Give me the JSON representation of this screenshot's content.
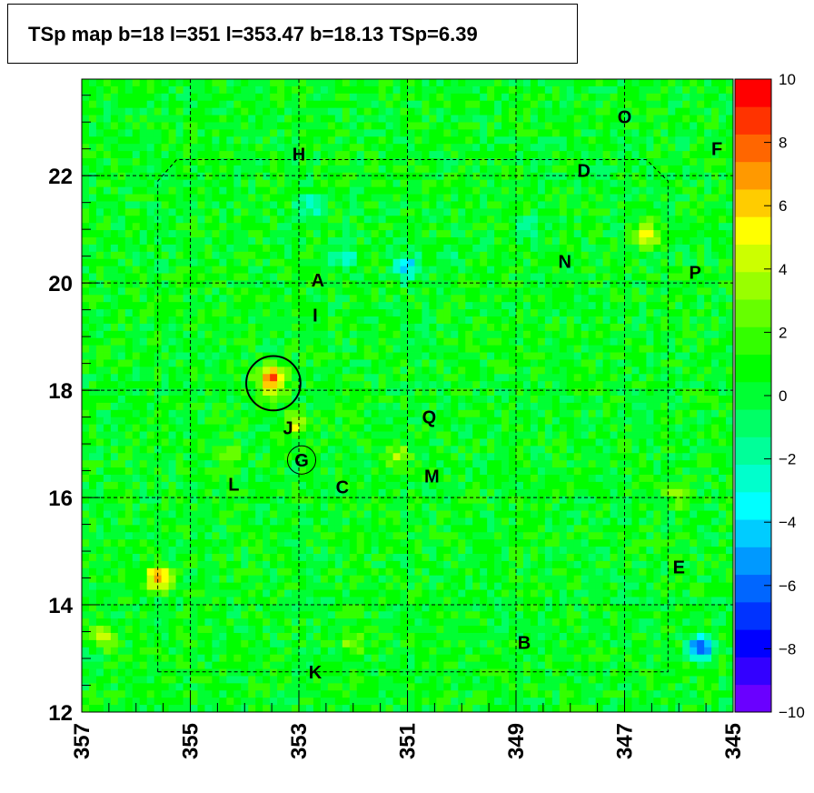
{
  "title": "TSp map b=18 l=351 l=353.47 b=18.13 TSp=6.39",
  "chart_data": {
    "type": "heatmap",
    "title": "TSp map b=18 l=351 l=353.47 b=18.13 TSp=6.39",
    "xlabel": "",
    "ylabel": "",
    "xlim": [
      357,
      345
    ],
    "ylim": [
      12,
      23.8
    ],
    "x_reversed": true,
    "x_ticks": [
      "357",
      "355",
      "353",
      "351",
      "349",
      "347",
      "345"
    ],
    "y_ticks": [
      "12",
      "14",
      "16",
      "18",
      "20",
      "22"
    ],
    "colorbar": {
      "min": -10,
      "max": 10,
      "ticks": [
        "10",
        "8",
        "6",
        "4",
        "2",
        "0",
        "−2",
        "−4",
        "−6",
        "−8",
        "−10"
      ],
      "colors": [
        "#6a00ff",
        "#3300ff",
        "#0000ff",
        "#0033ff",
        "#0066ff",
        "#0099ff",
        "#00ccff",
        "#00ffff",
        "#00ffcc",
        "#00ff99",
        "#00ff66",
        "#00ff33",
        "#00ff00",
        "#33ff00",
        "#66ff00",
        "#99ff00",
        "#ccff00",
        "#ffff00",
        "#ffcc00",
        "#ff9900",
        "#ff6600",
        "#ff3300",
        "#ff0000"
      ]
    },
    "background_value": 0.5,
    "hotspots": [
      {
        "l": 353.5,
        "b": 18.2,
        "value": 8.5
      },
      {
        "l": 355.6,
        "b": 14.5,
        "value": 6.5
      },
      {
        "l": 346.6,
        "b": 20.9,
        "value": 4.5
      },
      {
        "l": 353.05,
        "b": 17.4,
        "value": 4.0
      },
      {
        "l": 356.6,
        "b": 13.4,
        "value": 3.5
      },
      {
        "l": 351.2,
        "b": 16.8,
        "value": 3.0
      },
      {
        "l": 346.0,
        "b": 16.1,
        "value": 3.0
      },
      {
        "l": 352.0,
        "b": 13.3,
        "value": 2.5
      },
      {
        "l": 354.3,
        "b": 16.8,
        "value": 2.5
      }
    ],
    "coldspots": [
      {
        "l": 351.0,
        "b": 20.3,
        "value": -5.0
      },
      {
        "l": 345.6,
        "b": 13.2,
        "value": -7.0
      },
      {
        "l": 352.2,
        "b": 20.5,
        "value": -3.5
      },
      {
        "l": 352.8,
        "b": 21.4,
        "value": -3.0
      },
      {
        "l": 350.2,
        "b": 20.5,
        "value": -2.5
      },
      {
        "l": 348.8,
        "b": 21.0,
        "value": -2.0
      }
    ],
    "sources": [
      {
        "label": "O",
        "l": 347.0,
        "b": 23.1
      },
      {
        "label": "F",
        "l": 345.3,
        "b": 22.5
      },
      {
        "label": "H",
        "l": 353.0,
        "b": 22.4
      },
      {
        "label": "D",
        "l": 347.75,
        "b": 22.1
      },
      {
        "label": "N",
        "l": 348.1,
        "b": 20.4
      },
      {
        "label": "P",
        "l": 345.7,
        "b": 20.2
      },
      {
        "label": "A",
        "l": 352.65,
        "b": 20.05
      },
      {
        "label": "I",
        "l": 352.7,
        "b": 19.4
      },
      {
        "label": "J",
        "l": 353.2,
        "b": 17.3
      },
      {
        "label": "Q",
        "l": 350.6,
        "b": 17.5
      },
      {
        "label": "G",
        "l": 352.95,
        "b": 16.7
      },
      {
        "label": "M",
        "l": 350.55,
        "b": 16.4
      },
      {
        "label": "L",
        "l": 354.2,
        "b": 16.25
      },
      {
        "label": "C",
        "l": 352.2,
        "b": 16.2
      },
      {
        "label": "E",
        "l": 346.0,
        "b": 14.7
      },
      {
        "label": "B",
        "l": 348.85,
        "b": 13.3
      },
      {
        "label": "K",
        "l": 352.7,
        "b": 12.75
      }
    ],
    "circles": [
      {
        "name": "best-fit-circle",
        "l": 353.47,
        "b": 18.13,
        "radius_deg": 0.5
      },
      {
        "name": "source-g-circle",
        "l": 352.95,
        "b": 16.7,
        "radius_deg": 0.26
      }
    ],
    "grid": true
  }
}
